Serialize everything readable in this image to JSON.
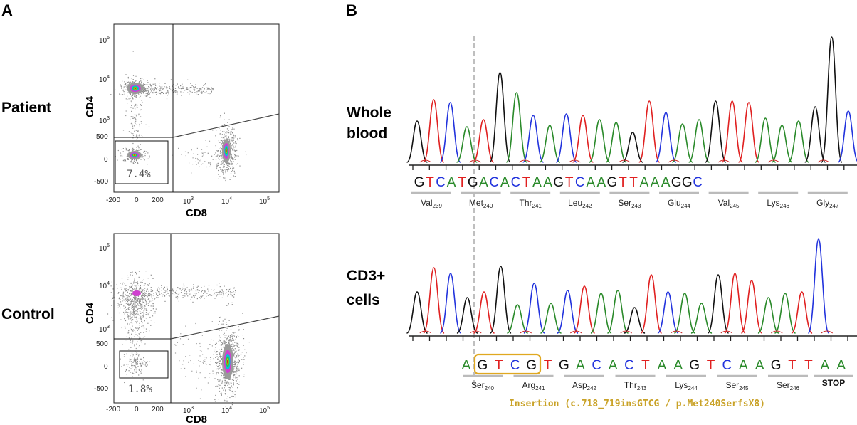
{
  "panels": {
    "a_label": "A",
    "b_label": "B"
  },
  "flow": {
    "rows": [
      {
        "label": "Patient",
        "gate_pct": "7.4%"
      },
      {
        "label": "Control",
        "gate_pct": "1.8%"
      }
    ],
    "y_axis_title": "CD4",
    "x_axis_title": "CD8",
    "y_ticks": {
      "t5": "5",
      "t4": "4",
      "t3": "3",
      "t500": "500",
      "t0": "0",
      "tm500": "-500",
      "base": "10"
    },
    "x_ticks": {
      "m200": "-200",
      "z": "0",
      "p200": "200",
      "e3": "3",
      "e4": "4",
      "e5": "5",
      "base": "10"
    }
  },
  "sequencing": {
    "whole_blood": {
      "label_line1": "Whole",
      "label_line2": "blood",
      "bases": [
        "G",
        "T",
        "C",
        "A",
        "T",
        "G",
        "A",
        "C",
        "A",
        "C",
        "T",
        "A",
        "A",
        "G",
        "T",
        "C",
        "A",
        "A",
        "G",
        "T",
        "T",
        "A",
        "A",
        "A",
        "G",
        "G",
        "C"
      ],
      "codons": [
        {
          "name": "Val",
          "num": "239"
        },
        {
          "name": "Met",
          "num": "240"
        },
        {
          "name": "Thr",
          "num": "241"
        },
        {
          "name": "Leu",
          "num": "242"
        },
        {
          "name": "Ser",
          "num": "243"
        },
        {
          "name": "Glu",
          "num": "244"
        },
        {
          "name": "Val",
          "num": "245"
        },
        {
          "name": "Lys",
          "num": "246"
        },
        {
          "name": "Gly",
          "num": "247"
        }
      ]
    },
    "cd3_cells": {
      "label_line1": "CD3+",
      "label_line2": "cells",
      "bases": [
        "A",
        "G",
        "T",
        "C",
        "G",
        "T",
        "G",
        "A",
        "C",
        "A",
        "C",
        "T",
        "A",
        "A",
        "G",
        "T",
        "C",
        "A",
        "A",
        "G",
        "T",
        "T",
        "A",
        "A"
      ],
      "codons": [
        {
          "name": "Ser",
          "num": "240"
        },
        {
          "name": "Arg",
          "num": "241"
        },
        {
          "name": "Asp",
          "num": "242"
        },
        {
          "name": "Thr",
          "num": "243"
        },
        {
          "name": "Lys",
          "num": "244"
        },
        {
          "name": "Ser",
          "num": "245"
        },
        {
          "name": "Ser",
          "num": "246"
        }
      ],
      "stop_label": "STOP",
      "insertion_label": "Insertion (c.718_719insGTCG / p.Met240SerfsX8)"
    },
    "colors": {
      "A": "#2a8a2a",
      "T": "#e02020",
      "C": "#2233dd",
      "G": "#111111",
      "highlight": "#e0a820",
      "caption": "#c9a227"
    }
  }
}
